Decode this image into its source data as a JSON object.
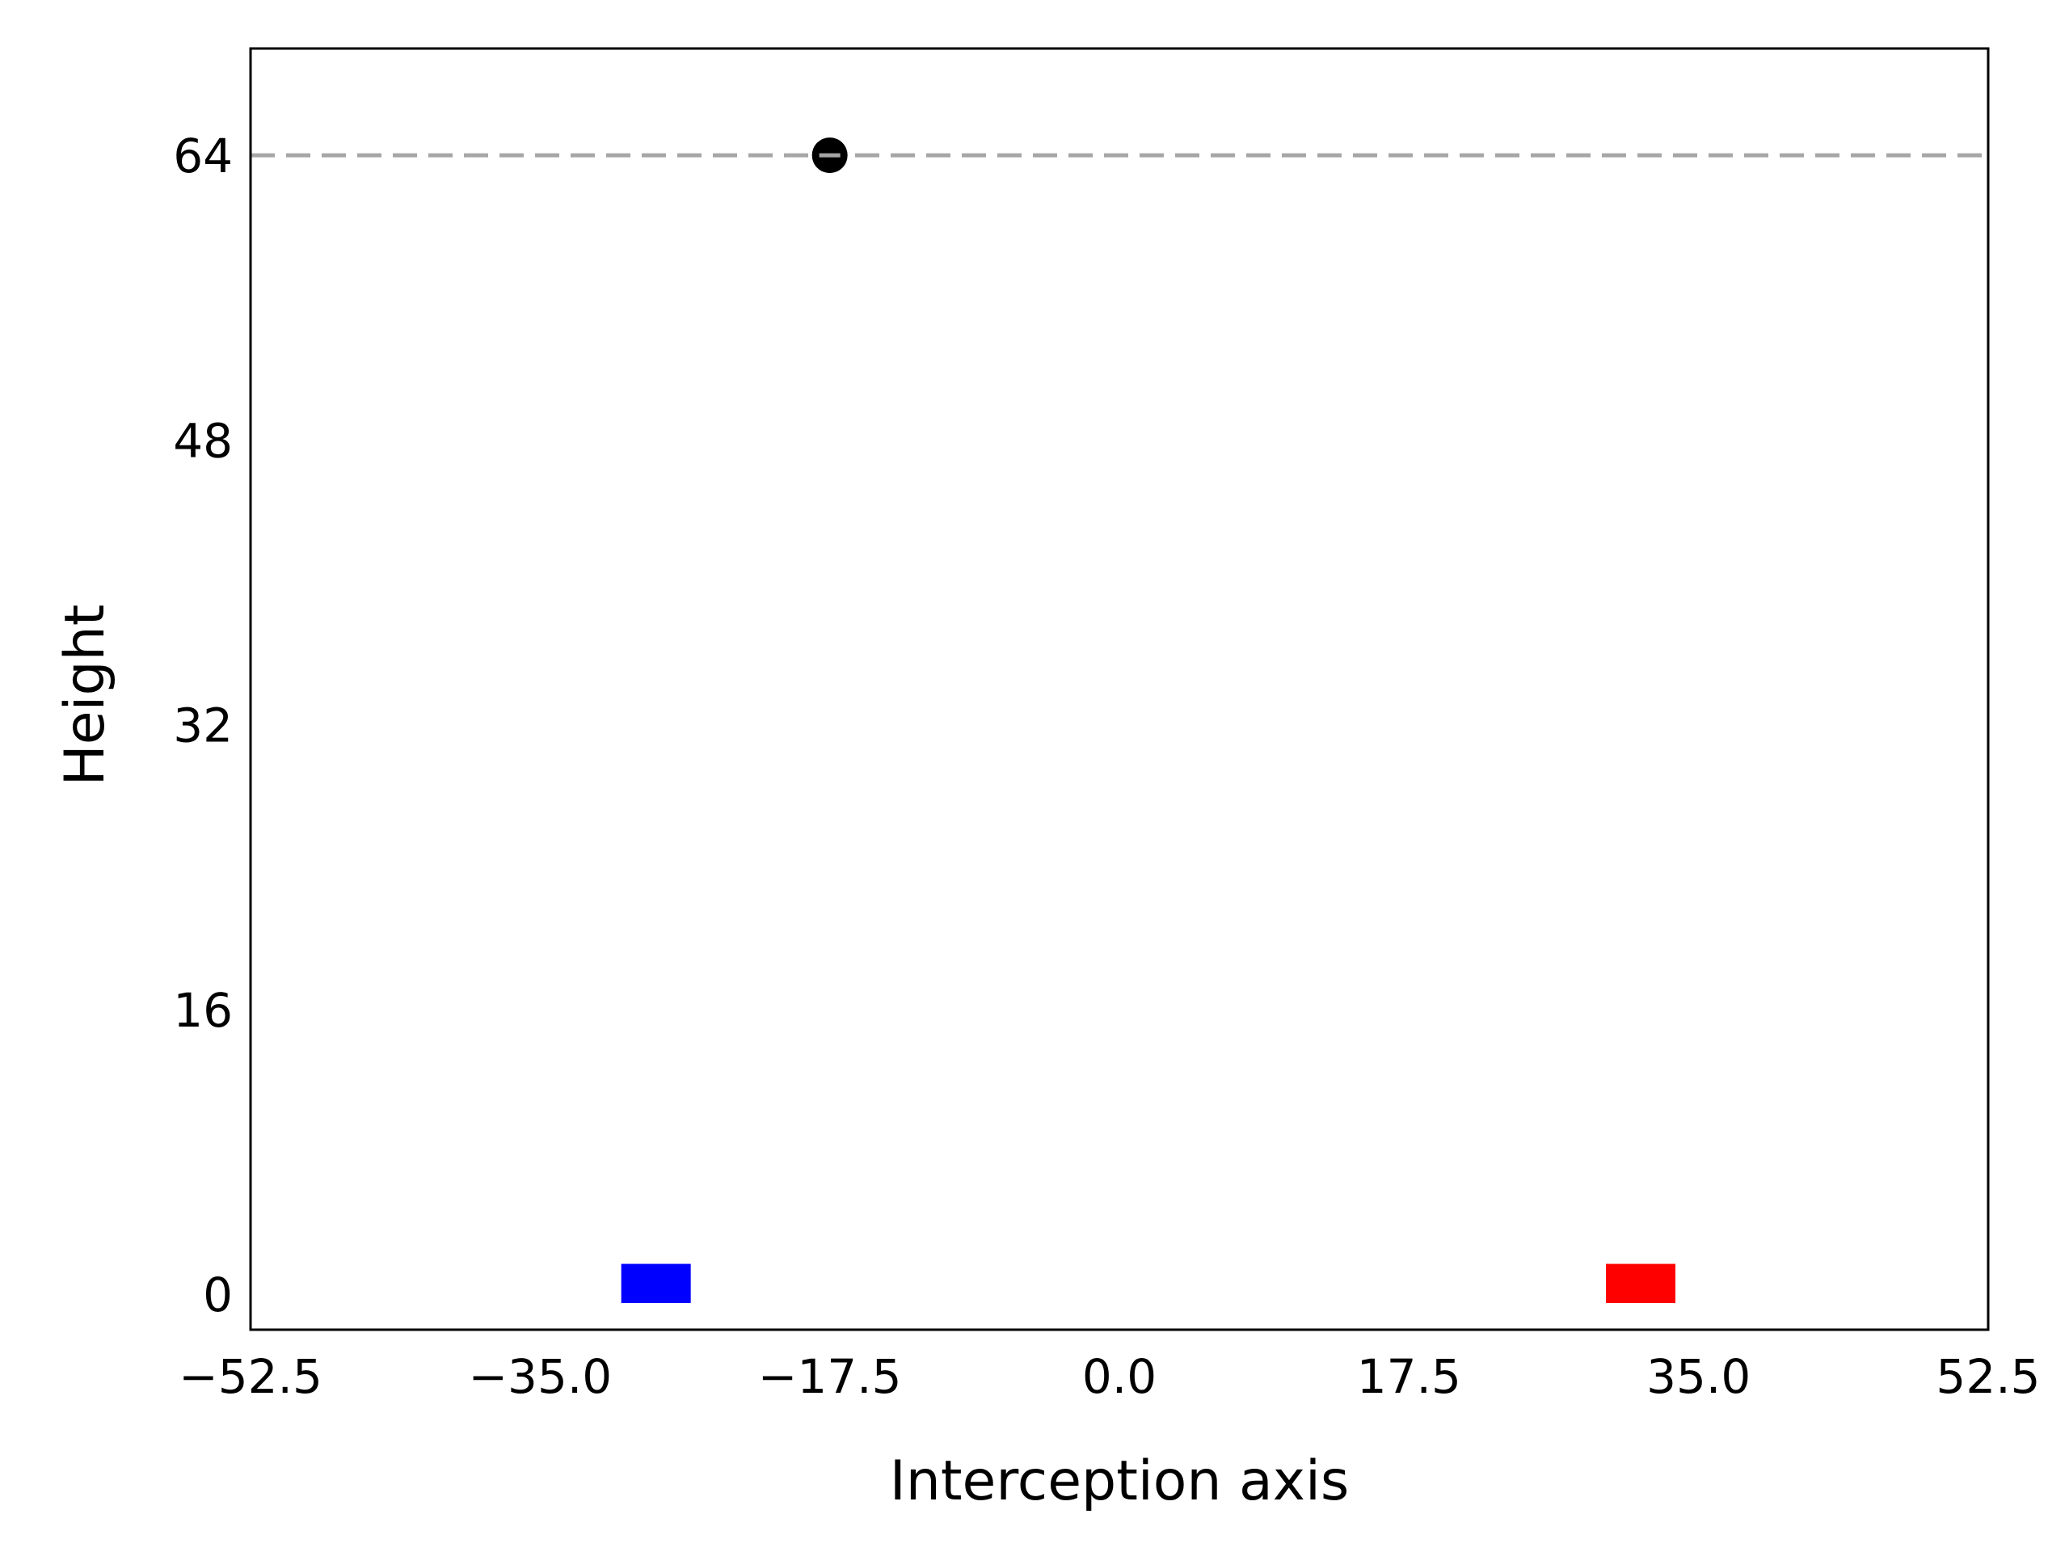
{
  "chart_data": {
    "type": "scatter",
    "title": "",
    "xlabel": "Interception axis",
    "ylabel": "Height",
    "xlim": [
      -52.5,
      52.5
    ],
    "ylim": [
      -2,
      70
    ],
    "x_ticks": [
      -52.5,
      -35.0,
      -17.5,
      0.0,
      17.5,
      35.0,
      52.5
    ],
    "x_tick_labels": [
      "−52.5",
      "−35.0",
      "−17.5",
      "0.0",
      "17.5",
      "35.0",
      "52.5"
    ],
    "y_ticks": [
      0,
      16,
      32,
      48,
      64
    ],
    "y_tick_labels": [
      "0",
      "16",
      "32",
      "48",
      "64"
    ],
    "grid": false,
    "reference_line": {
      "y": 64,
      "style": "dashed",
      "color": "#a6a6a6"
    },
    "markers": [
      {
        "name": "ball",
        "shape": "circle",
        "x": -17.5,
        "y": 64,
        "color": "#000000"
      },
      {
        "name": "blue-block",
        "shape": "rect",
        "x_center": -28,
        "y_center": 0.6,
        "width": 4.2,
        "height": 2.2,
        "color": "#0000ff"
      },
      {
        "name": "red-block",
        "shape": "rect",
        "x_center": 31.5,
        "y_center": 0.6,
        "width": 4.2,
        "height": 2.2,
        "color": "#ff0000"
      }
    ]
  }
}
